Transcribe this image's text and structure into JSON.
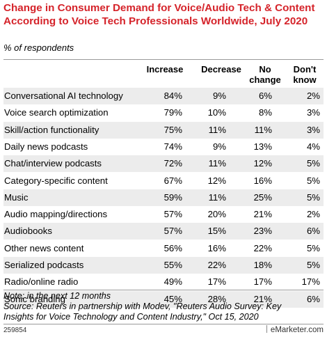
{
  "chart_data": {
    "type": "table",
    "title": "Change in Consumer Demand for Voice/Audio Tech & Content According to Voice Tech Professionals Worldwide, July 2020",
    "subtitle": "% of respondents",
    "columns": [
      "Increase",
      "Decrease",
      "No change",
      "Don't know"
    ],
    "rows": [
      {
        "label": "Conversational AI technology",
        "values": [
          "84%",
          "9%",
          "6%",
          "2%"
        ]
      },
      {
        "label": "Voice search optimization",
        "values": [
          "79%",
          "10%",
          "8%",
          "3%"
        ]
      },
      {
        "label": "Skill/action functionality",
        "values": [
          "75%",
          "11%",
          "11%",
          "3%"
        ]
      },
      {
        "label": "Daily news podcasts",
        "values": [
          "74%",
          "9%",
          "13%",
          "4%"
        ]
      },
      {
        "label": "Chat/interview podcasts",
        "values": [
          "72%",
          "11%",
          "12%",
          "5%"
        ]
      },
      {
        "label": "Category-specific content",
        "values": [
          "67%",
          "12%",
          "16%",
          "5%"
        ]
      },
      {
        "label": "Music",
        "values": [
          "59%",
          "11%",
          "25%",
          "5%"
        ]
      },
      {
        "label": "Audio mapping/directions",
        "values": [
          "57%",
          "20%",
          "21%",
          "2%"
        ]
      },
      {
        "label": "Audiobooks",
        "values": [
          "57%",
          "15%",
          "23%",
          "6%"
        ]
      },
      {
        "label": "Other news content",
        "values": [
          "56%",
          "16%",
          "22%",
          "5%"
        ]
      },
      {
        "label": "Serialized podcasts",
        "values": [
          "55%",
          "22%",
          "18%",
          "5%"
        ]
      },
      {
        "label": "Radio/online radio",
        "values": [
          "49%",
          "17%",
          "17%",
          "17%"
        ]
      },
      {
        "label": "Sonic branding",
        "values": [
          "45%",
          "28%",
          "21%",
          "6%"
        ]
      }
    ]
  },
  "notes": {
    "note": "Note: in the next 12 months",
    "source_line1": "Source: Reuters in partnership with Modev, \"Reuters Audio Survey: Key",
    "source_line2": "Insights for Voice Technology and Content Industry,\" Oct 15, 2020"
  },
  "footer": {
    "chart_id": "259854",
    "brand_e": "e",
    "brand_rest": "Marketer",
    "brand_domain": "com"
  },
  "colors": {
    "title": "#d5232a",
    "row_shade": "#ececec",
    "rule": "#9a9a9a"
  }
}
